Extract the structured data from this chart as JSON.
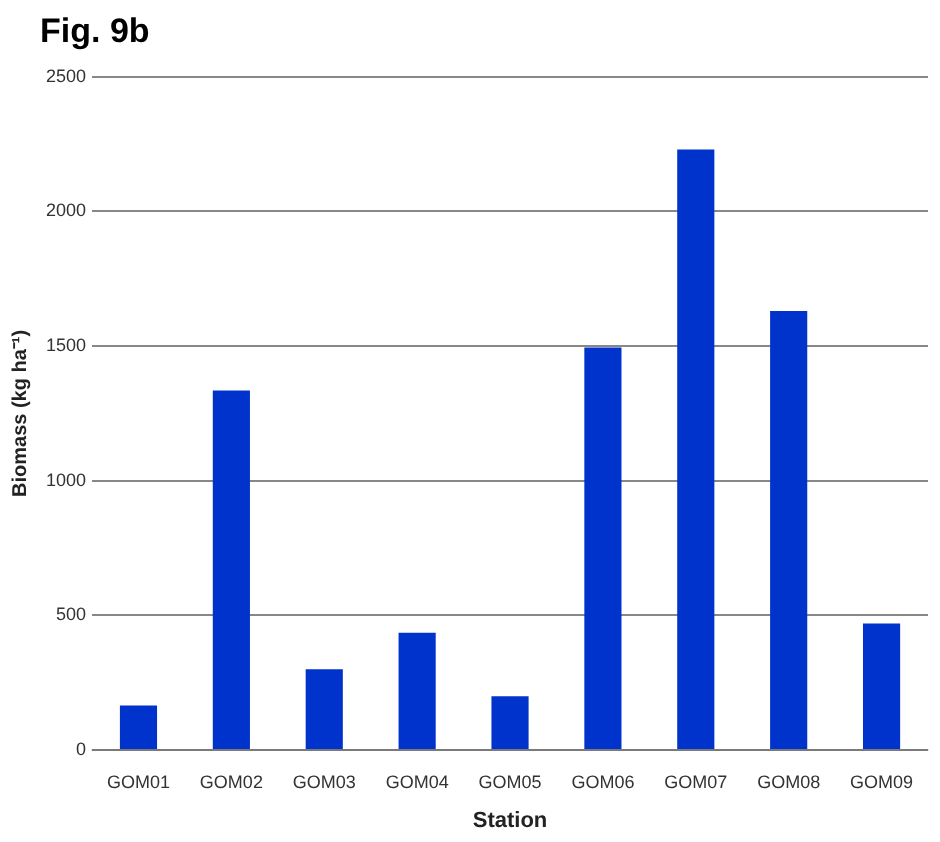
{
  "chart_data": {
    "type": "bar",
    "title": "Fig. 9b",
    "xlabel": "Station",
    "ylabel": "Biomass (kg ha⁻¹)",
    "categories": [
      "GOM01",
      "GOM02",
      "GOM03",
      "GOM04",
      "GOM05",
      "GOM06",
      "GOM07",
      "GOM08",
      "GOM09"
    ],
    "values": [
      165,
      1335,
      300,
      435,
      200,
      1495,
      2230,
      1630,
      470
    ],
    "color": "#0033cc",
    "ylim": [
      0,
      2500
    ],
    "yticks": [
      0,
      500,
      1000,
      1500,
      2000,
      2500
    ],
    "grid": "y",
    "legend": false
  }
}
